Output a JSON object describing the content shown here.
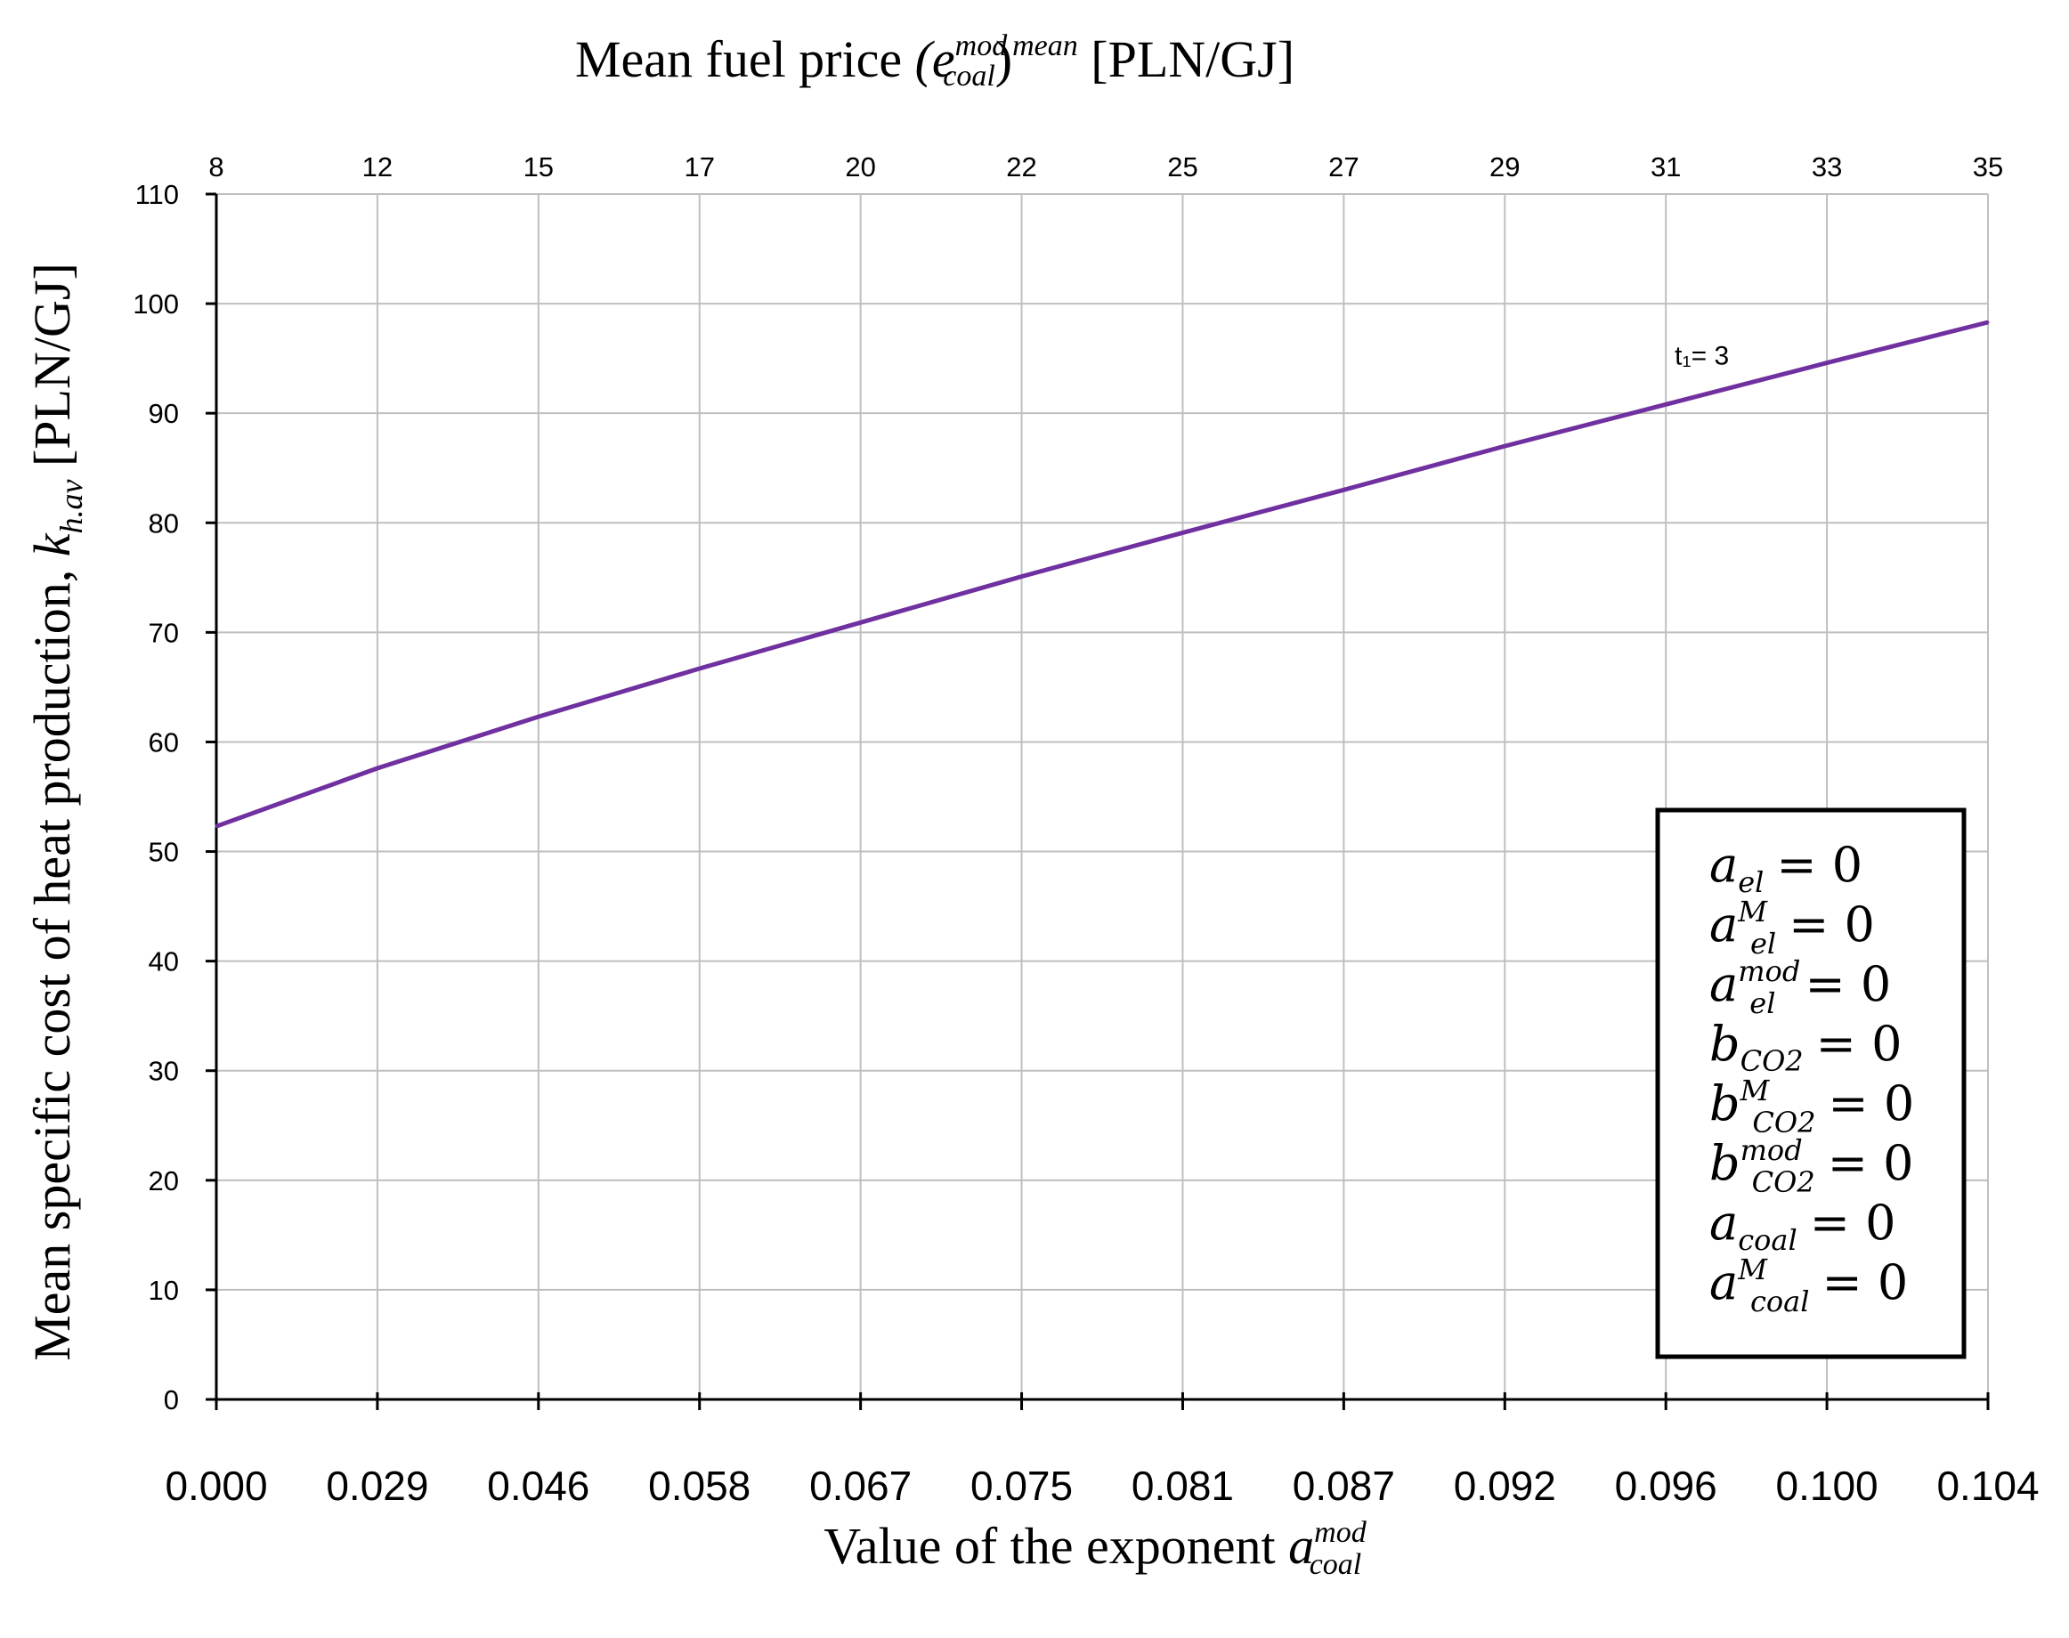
{
  "chart_data": {
    "type": "line",
    "title_top": "Mean fuel price",
    "top_axis": {
      "label_prefix": "Mean fuel price",
      "label_symbol_base": "(e",
      "label_symbol_sup": "mod",
      "label_symbol_sub": "coal",
      "label_paren_close": ")",
      "label_symbol_sup2": "mean",
      "label_unit": "[PLN/GJ]",
      "ticks": [
        "8",
        "12",
        "15",
        "17",
        "20",
        "22",
        "25",
        "27",
        "29",
        "31",
        "33",
        "35"
      ]
    },
    "x_axis": {
      "label_prefix": "Value of the exponent",
      "label_symbol_base": "a",
      "label_symbol_sup": "mod",
      "label_symbol_sub": "coal",
      "ticks": [
        "0.000",
        "0.029",
        "0.046",
        "0.058",
        "0.067",
        "0.075",
        "0.081",
        "0.087",
        "0.092",
        "0.096",
        "0.100",
        "0.104"
      ]
    },
    "y_axis": {
      "label_prefix": "Mean specific cost of heat production,",
      "label_symbol_base": "k",
      "label_symbol_sub": "h.av",
      "label_unit": "[PLN/GJ]",
      "ylim": [
        0,
        110
      ],
      "ticks": [
        0,
        10,
        20,
        30,
        40,
        50,
        60,
        70,
        80,
        90,
        100,
        110
      ]
    },
    "series": [
      {
        "name": "t₁= 3",
        "color": "#7030A0",
        "x": [
          "0.000",
          "0.029",
          "0.046",
          "0.058",
          "0.067",
          "0.075",
          "0.081",
          "0.087",
          "0.092",
          "0.096",
          "0.100",
          "0.104"
        ],
        "values": [
          52.3,
          57.6,
          62.3,
          66.7,
          70.9,
          75.1,
          79.1,
          83.0,
          87.0,
          90.8,
          94.6,
          98.3
        ]
      }
    ],
    "grid": true,
    "legend_box": {
      "position": "bottom-right",
      "entries": [
        {
          "base": "a",
          "sub": "el",
          "sup": "",
          "rhs": "= 0"
        },
        {
          "base": "a",
          "sub": "el",
          "sup": "M",
          "rhs": "= 0"
        },
        {
          "base": "a",
          "sub": "el",
          "sup": "mod",
          "rhs": "= 0"
        },
        {
          "base": "b",
          "sub": "CO2",
          "sup": "",
          "rhs": "= 0"
        },
        {
          "base": "b",
          "sub": "CO2",
          "sup": "M",
          "rhs": "= 0"
        },
        {
          "base": "b",
          "sub": "CO2",
          "sup": "mod",
          "rhs": "= 0"
        },
        {
          "base": "a",
          "sub": "coal",
          "sup": "",
          "rhs": "= 0"
        },
        {
          "base": "a",
          "sub": "coal",
          "sup": "M",
          "rhs": "= 0"
        }
      ]
    }
  }
}
